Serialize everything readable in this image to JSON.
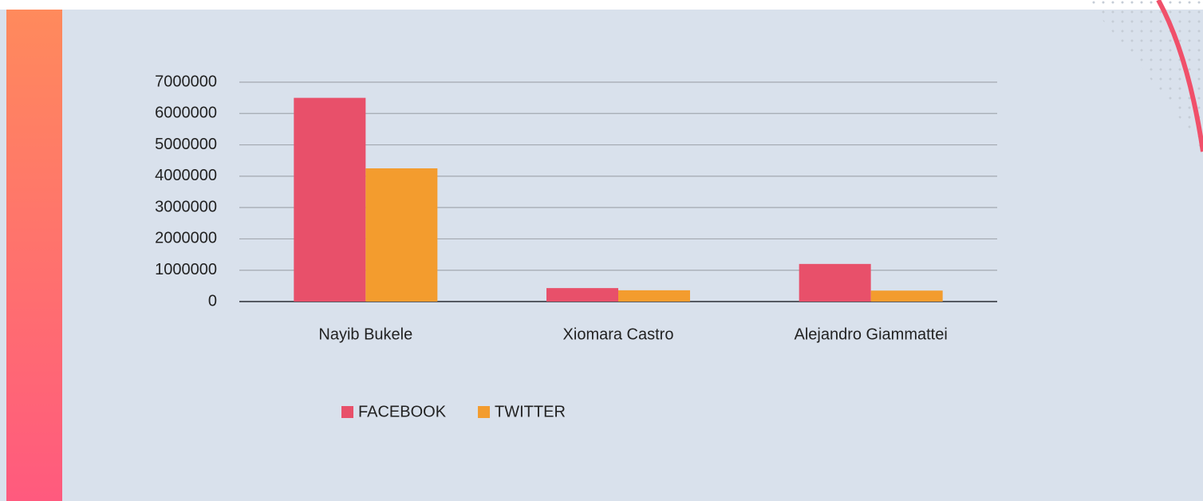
{
  "chart_data": {
    "type": "bar",
    "categories": [
      "Nayib Bukele",
      "Xiomara Castro",
      "Alejandro Giammattei"
    ],
    "series": [
      {
        "name": "FACEBOOK",
        "color": "#e8506a",
        "values": [
          6500000,
          430000,
          1200000
        ]
      },
      {
        "name": "TWITTER",
        "color": "#f39c2e",
        "values": [
          4250000,
          360000,
          350000
        ]
      }
    ],
    "ylim": [
      0,
      7000000
    ],
    "yticks": [
      0,
      1000000,
      2000000,
      3000000,
      4000000,
      5000000,
      6000000,
      7000000
    ],
    "grid": true,
    "legend": "bottom"
  }
}
